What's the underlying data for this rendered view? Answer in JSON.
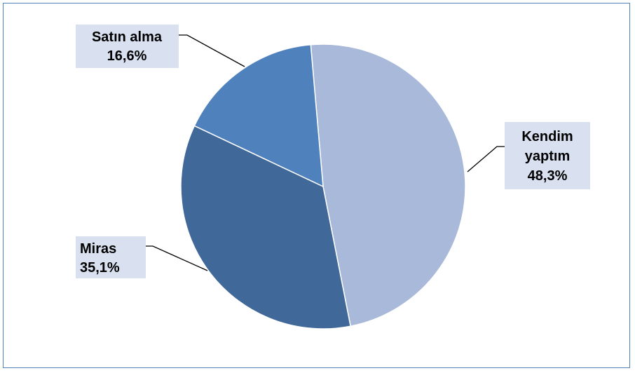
{
  "chart_data": {
    "type": "pie",
    "title": "",
    "categories": [
      "Kendim yaptım",
      "Miras",
      "Satın alma"
    ],
    "values": [
      48.3,
      35.1,
      16.6
    ],
    "value_labels": [
      "48,3%",
      "35,1%",
      "16,6%"
    ],
    "label_lines": [
      [
        "Kendim",
        "yaptım",
        "48,3%"
      ],
      [
        "Miras",
        "35,1%"
      ],
      [
        "Satın alma",
        "16,6%"
      ]
    ],
    "colors": [
      "#a9b9d9",
      "#406899",
      "#4f81bd"
    ],
    "legend": "none",
    "frame_color": "#4f81bd",
    "label_background": "#d9e1f1"
  }
}
